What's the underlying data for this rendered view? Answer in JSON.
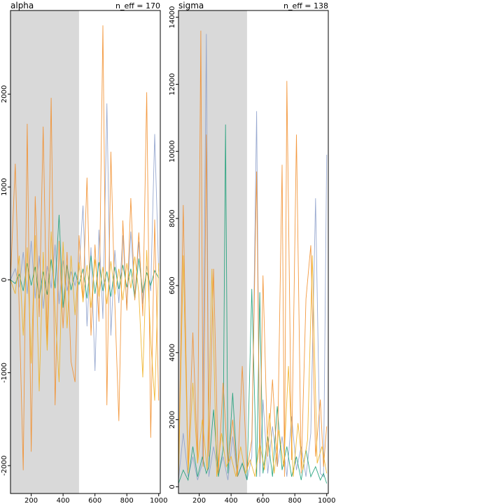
{
  "chart_data": [
    {
      "type": "line",
      "title": "alpha",
      "annotation": "n_eff = 170",
      "xlabel": "",
      "ylabel": "",
      "xlim": [
        70,
        1010
      ],
      "ylim": [
        -2300,
        2900
      ],
      "xticks": [
        200,
        400,
        600,
        800,
        1000
      ],
      "yticks": [
        -2000,
        -1000,
        0,
        1000,
        2000
      ],
      "warmup_end": 500,
      "grid": false,
      "series_colors": [
        "#8da0cb",
        "#1b9e77",
        "#f28e2b",
        "#f0b020"
      ],
      "series": [
        {
          "x": [
            70,
            100,
            125,
            150,
            175,
            200,
            225,
            250,
            275,
            300,
            325,
            350,
            375,
            400,
            425,
            450,
            475,
            500,
            525,
            550,
            575,
            600,
            625,
            650,
            675,
            700,
            725,
            750,
            775,
            800,
            825,
            850,
            875,
            900,
            925,
            950,
            975,
            1000
          ],
          "values": [
            0,
            120,
            -80,
            300,
            -150,
            420,
            -200,
            260,
            -310,
            150,
            -90,
            380,
            -260,
            210,
            -120,
            90,
            -60,
            110,
            800,
            -500,
            350,
            -980,
            540,
            -420,
            1900,
            -600,
            320,
            -250,
            480,
            -310,
            520,
            -180,
            410,
            -260,
            150,
            -120,
            1570,
            90
          ]
        },
        {
          "x": [
            70,
            100,
            125,
            150,
            175,
            200,
            225,
            250,
            275,
            300,
            325,
            350,
            375,
            400,
            425,
            450,
            475,
            500,
            525,
            550,
            575,
            600,
            625,
            650,
            675,
            700,
            725,
            750,
            775,
            800,
            825,
            850,
            875,
            900,
            925,
            950,
            975,
            1000
          ],
          "values": [
            0,
            -40,
            60,
            -120,
            180,
            -60,
            140,
            -200,
            90,
            -160,
            220,
            -90,
            700,
            -300,
            160,
            -110,
            80,
            -50,
            120,
            -200,
            260,
            -150,
            190,
            -120,
            90,
            -180,
            140,
            -100,
            160,
            -80,
            120,
            -200,
            230,
            -140,
            80,
            -60,
            100,
            20
          ]
        },
        {
          "x": [
            70,
            100,
            125,
            150,
            175,
            200,
            225,
            250,
            275,
            300,
            325,
            350,
            375,
            400,
            425,
            450,
            475,
            500,
            525,
            550,
            575,
            600,
            625,
            650,
            675,
            700,
            725,
            750,
            775,
            800,
            825,
            850,
            875,
            900,
            925,
            950,
            975,
            1000
          ],
          "values": [
            0,
            1250,
            -320,
            -2050,
            1680,
            -1850,
            900,
            -400,
            1650,
            -700,
            1960,
            -1350,
            420,
            -520,
            300,
            -880,
            -1100,
            480,
            -200,
            1100,
            -600,
            380,
            -450,
            2740,
            -1350,
            1380,
            -260,
            -1520,
            640,
            -330,
            880,
            -220,
            510,
            -390,
            2020,
            -1700,
            650,
            -1300
          ]
        },
        {
          "x": [
            70,
            100,
            125,
            150,
            175,
            200,
            225,
            250,
            275,
            300,
            325,
            350,
            375,
            400,
            425,
            450,
            475,
            500,
            525,
            550,
            575,
            600,
            625,
            650,
            675,
            700,
            725,
            750,
            775,
            800,
            825,
            850,
            875,
            900,
            925,
            950,
            975,
            1000
          ],
          "values": [
            0,
            -150,
            260,
            -600,
            350,
            -900,
            480,
            -1200,
            300,
            -760,
            520,
            -330,
            -1100,
            410,
            -520,
            260,
            -380,
            190,
            -240,
            160,
            -300,
            220,
            -180,
            140,
            -260,
            200,
            -160,
            120,
            -220,
            180,
            -90,
            250,
            -140,
            -1050,
            320,
            -650,
            -1300,
            180
          ]
        }
      ]
    },
    {
      "type": "line",
      "title": "sigma",
      "annotation": "n_eff = 138",
      "xlabel": "",
      "ylabel": "",
      "xlim": [
        70,
        1010
      ],
      "ylim": [
        -200,
        14200
      ],
      "xticks": [
        200,
        400,
        600,
        800,
        1000
      ],
      "yticks": [
        0,
        2000,
        4000,
        6000,
        8000,
        10000,
        12000,
        14000
      ],
      "warmup_end": 500,
      "grid": false,
      "series_colors": [
        "#8da0cb",
        "#1b9e77",
        "#f28e2b",
        "#f0b020"
      ],
      "series": [
        {
          "x": [
            70,
            100,
            130,
            160,
            190,
            220,
            245,
            260,
            290,
            320,
            350,
            380,
            410,
            440,
            470,
            500,
            530,
            560,
            580,
            600,
            630,
            660,
            690,
            720,
            750,
            780,
            810,
            840,
            870,
            900,
            930,
            960,
            980,
            1000
          ],
          "values": [
            200,
            1600,
            300,
            900,
            200,
            700,
            13500,
            300,
            1200,
            400,
            900,
            200,
            1500,
            300,
            700,
            200,
            900,
            11200,
            300,
            2600,
            400,
            1800,
            600,
            1500,
            300,
            2100,
            500,
            1200,
            300,
            1600,
            8600,
            400,
            300,
            9900
          ]
        },
        {
          "x": [
            70,
            100,
            130,
            160,
            190,
            220,
            245,
            260,
            290,
            320,
            350,
            365,
            380,
            410,
            440,
            470,
            500,
            530,
            560,
            580,
            600,
            630,
            660,
            690,
            720,
            750,
            780,
            810,
            840,
            870,
            900,
            930,
            960,
            980,
            1000
          ],
          "values": [
            100,
            500,
            200,
            1200,
            300,
            900,
            400,
            600,
            2300,
            300,
            1100,
            10800,
            400,
            2800,
            300,
            700,
            200,
            5900,
            300,
            5800,
            400,
            1500,
            300,
            2400,
            500,
            1200,
            300,
            900,
            200,
            1100,
            300,
            600,
            200,
            400,
            100
          ]
        },
        {
          "x": [
            70,
            100,
            130,
            160,
            190,
            210,
            225,
            245,
            260,
            290,
            320,
            350,
            380,
            410,
            440,
            470,
            500,
            530,
            560,
            580,
            600,
            630,
            660,
            690,
            720,
            735,
            750,
            780,
            810,
            840,
            870,
            900,
            930,
            960,
            980,
            1000
          ],
          "values": [
            300,
            8400,
            500,
            4600,
            800,
            13600,
            600,
            10500,
            900,
            6500,
            400,
            3100,
            700,
            2000,
            300,
            3600,
            500,
            1400,
            9400,
            700,
            6300,
            900,
            3200,
            600,
            9600,
            300,
            12100,
            800,
            10500,
            400,
            5600,
            7200,
            900,
            2600,
            600,
            1800
          ]
        },
        {
          "x": [
            70,
            100,
            130,
            160,
            190,
            220,
            250,
            280,
            310,
            340,
            370,
            400,
            430,
            460,
            490,
            520,
            550,
            580,
            610,
            640,
            670,
            700,
            730,
            760,
            790,
            820,
            850,
            880,
            910,
            940,
            970,
            1000
          ],
          "values": [
            200,
            6900,
            400,
            3100,
            700,
            2000,
            500,
            6500,
            300,
            1600,
            600,
            900,
            300,
            1200,
            400,
            800,
            300,
            1300,
            500,
            2200,
            400,
            1700,
            600,
            3600,
            300,
            1900,
            500,
            1400,
            6900,
            700,
            1200,
            400
          ]
        }
      ]
    }
  ]
}
